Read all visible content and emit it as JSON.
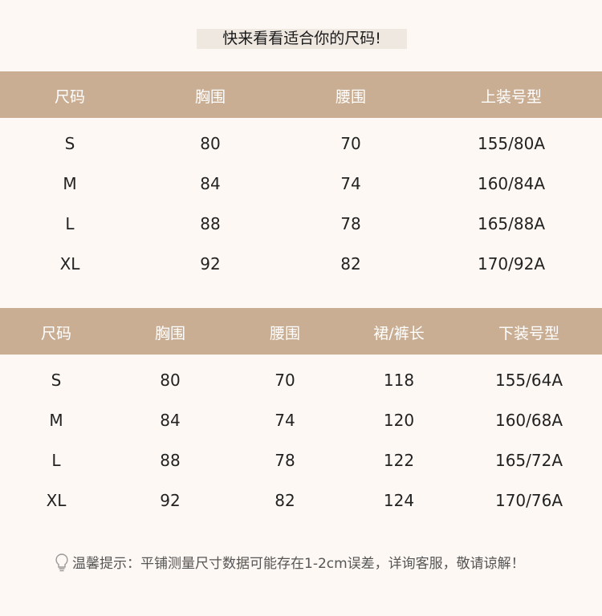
{
  "title": "快来看看适合你的尺码!",
  "top_table": {
    "headers": [
      "尺码",
      "胸围",
      "腰围",
      "上装号型"
    ],
    "rows": [
      [
        "S",
        "80",
        "70",
        "155/80A"
      ],
      [
        "M",
        "84",
        "74",
        "160/84A"
      ],
      [
        "L",
        "88",
        "78",
        "165/88A"
      ],
      [
        "XL",
        "92",
        "82",
        "170/92A"
      ]
    ]
  },
  "bottom_table": {
    "headers": [
      "尺码",
      "胸围",
      "腰围",
      "裙/裤长",
      "下装号型"
    ],
    "rows": [
      [
        "S",
        "80",
        "70",
        "118",
        "155/64A"
      ],
      [
        "M",
        "84",
        "74",
        "120",
        "160/68A"
      ],
      [
        "L",
        "88",
        "78",
        "122",
        "165/72A"
      ],
      [
        "XL",
        "92",
        "82",
        "124",
        "170/76A"
      ]
    ]
  },
  "note": {
    "icon": "lightbulb-icon",
    "text": "温馨提示：平铺测量尺寸数据可能存在1-2cm误差，详询客服，敬请谅解！"
  },
  "colors": {
    "header_band": "#c9ae94",
    "background": "#fdf8f3",
    "title_bg": "#efe8e1"
  }
}
